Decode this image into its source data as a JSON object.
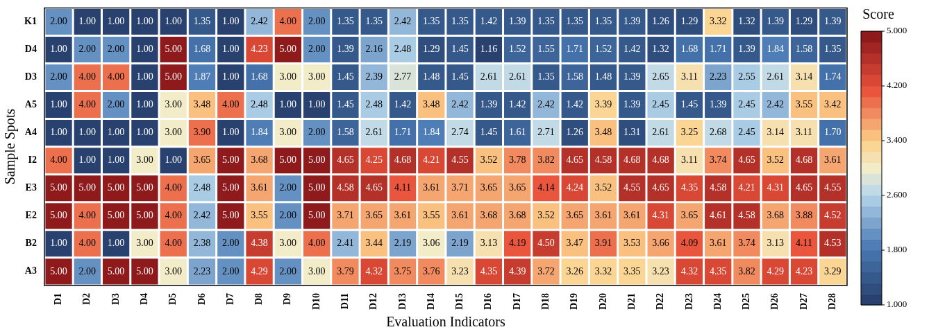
{
  "chart_data": {
    "type": "heatmap",
    "xlabel": "Evaluation Indicators",
    "ylabel": "Sample Spots",
    "clabel": "Score",
    "categories": [
      "D1",
      "D2",
      "D3",
      "D4",
      "D5",
      "D6",
      "D7",
      "D8",
      "D9",
      "D10",
      "D11",
      "D12",
      "D13",
      "D14",
      "D15",
      "D16",
      "D17",
      "D18",
      "D19",
      "D20",
      "D21",
      "D22",
      "D23",
      "D24",
      "D25",
      "D26",
      "D27",
      "D28"
    ],
    "y_categories": [
      "K1",
      "D4",
      "D3",
      "A5",
      "A4",
      "I2",
      "E3",
      "E2",
      "B2",
      "A3"
    ],
    "cells": [
      [
        2.0,
        1.0,
        1.0,
        1.0,
        1.0,
        1.35,
        1.0,
        2.42,
        4.0,
        2.0,
        1.35,
        1.35,
        2.42,
        1.35,
        1.35,
        1.42,
        1.39,
        1.35,
        1.35,
        1.35,
        1.39,
        1.26,
        1.29,
        3.32,
        1.32,
        1.39,
        1.29,
        1.39
      ],
      [
        1.0,
        2.0,
        2.0,
        1.0,
        5.0,
        1.68,
        1.0,
        4.23,
        5.0,
        2.0,
        1.39,
        2.16,
        2.48,
        1.29,
        1.45,
        1.16,
        1.52,
        1.55,
        1.71,
        1.52,
        1.42,
        1.32,
        1.68,
        1.71,
        1.39,
        1.84,
        1.58,
        1.35
      ],
      [
        2.0,
        4.0,
        4.0,
        1.0,
        5.0,
        1.87,
        1.0,
        1.68,
        3.0,
        3.0,
        1.45,
        2.39,
        2.77,
        1.48,
        1.45,
        2.61,
        2.61,
        1.35,
        1.58,
        1.48,
        1.39,
        2.65,
        3.11,
        2.23,
        2.55,
        2.61,
        3.14,
        1.74
      ],
      [
        1.0,
        4.0,
        2.0,
        1.0,
        3.0,
        3.48,
        4.0,
        2.48,
        1.0,
        1.0,
        1.45,
        2.48,
        1.42,
        3.48,
        2.42,
        1.39,
        1.42,
        2.42,
        1.42,
        3.39,
        1.39,
        2.45,
        1.45,
        1.39,
        2.45,
        2.42,
        3.55,
        3.42
      ],
      [
        1.0,
        1.0,
        1.0,
        1.0,
        3.0,
        3.9,
        1.0,
        1.84,
        3.0,
        2.0,
        1.58,
        2.61,
        1.71,
        1.84,
        2.74,
        1.45,
        1.61,
        2.71,
        1.26,
        3.48,
        1.31,
        2.61,
        3.25,
        2.68,
        2.45,
        3.14,
        3.11,
        1.7
      ],
      [
        4.0,
        1.0,
        1.0,
        3.0,
        1.0,
        3.65,
        5.0,
        3.68,
        5.0,
        5.0,
        4.65,
        4.25,
        4.68,
        4.21,
        4.55,
        3.52,
        3.78,
        3.82,
        4.65,
        4.58,
        4.68,
        4.68,
        3.11,
        3.74,
        4.65,
        3.52,
        4.68,
        3.61
      ],
      [
        5.0,
        5.0,
        5.0,
        5.0,
        4.0,
        2.48,
        5.0,
        3.61,
        2.0,
        5.0,
        4.58,
        4.65,
        4.11,
        3.61,
        3.71,
        3.65,
        3.65,
        4.14,
        4.24,
        3.52,
        4.55,
        4.65,
        4.35,
        4.58,
        4.21,
        4.31,
        4.65,
        4.55
      ],
      [
        5.0,
        4.0,
        5.0,
        5.0,
        4.0,
        2.42,
        5.0,
        3.55,
        2.0,
        5.0,
        3.71,
        3.65,
        3.61,
        3.55,
        3.61,
        3.68,
        3.68,
        3.52,
        3.65,
        3.61,
        3.61,
        4.31,
        3.65,
        4.61,
        4.58,
        3.68,
        3.88,
        4.52
      ],
      [
        1.0,
        4.0,
        1.0,
        3.0,
        4.0,
        2.38,
        2.0,
        4.38,
        3.0,
        4.0,
        2.41,
        3.44,
        2.19,
        3.06,
        2.19,
        3.13,
        4.19,
        4.5,
        3.47,
        3.91,
        3.53,
        3.66,
        4.09,
        3.61,
        3.74,
        3.13,
        4.11,
        4.53
      ],
      [
        5.0,
        2.0,
        5.0,
        5.0,
        3.0,
        2.23,
        2.0,
        4.29,
        2.0,
        3.0,
        3.79,
        4.32,
        3.75,
        3.76,
        3.23,
        4.35,
        4.39,
        3.72,
        3.26,
        3.32,
        3.35,
        3.23,
        4.32,
        4.35,
        3.82,
        4.29,
        4.23,
        3.29
      ]
    ],
    "cell_labels": [
      [
        "2.00",
        "1.00",
        "1.00",
        "1.00",
        "1.00",
        "1.35",
        "1.00",
        "2.42",
        "4.00",
        "2.00",
        "1.35",
        "1.35",
        "2.42",
        "1.35",
        "1.35",
        "1.42",
        "1.39",
        "1.35",
        "1.35",
        "1.35",
        "1.39",
        "1.26",
        "1.29",
        "3.32",
        "1.32",
        "1.39",
        "1.29",
        "1.39"
      ],
      [
        "1.00",
        "2.00",
        "2.00",
        "1.00",
        "5.00",
        "1.68",
        "1.00",
        "4.23",
        "5.00",
        "2.00",
        "1.39",
        "2.16",
        "2.48",
        "1.29",
        "1.45",
        "1.16",
        "1.52",
        "1.55",
        "1.71",
        "1.52",
        "1.42",
        "1.32",
        "1.68",
        "1.71",
        "1.39",
        "1.84",
        "1.58",
        "1.35"
      ],
      [
        "2.00",
        "4.00",
        "4.00",
        "1.00",
        "5.00",
        "1.87",
        "1.00",
        "1.68",
        "3.00",
        "3.00",
        "1.45",
        "2.39",
        "2.77",
        "1.48",
        "1.45",
        "2.61",
        "2.61",
        "1.35",
        "1.58",
        "1.48",
        "1.39",
        "2.65",
        "3.11",
        "2.23",
        "2.55",
        "2.61",
        "3.14",
        "1.74"
      ],
      [
        "1.00",
        "4.00",
        "2.00",
        "1.00",
        "3.00",
        "3.48",
        "4.00",
        "2.48",
        "1.00",
        "1.00",
        "1.45",
        "2.48",
        "1.42",
        "3.48",
        "2.42",
        "1.39",
        "1.42",
        "2.42",
        "1.42",
        "3.39",
        "1.39",
        "2.45",
        "1.45",
        "1.39",
        "2.45",
        "2.42",
        "3.55",
        "3.42"
      ],
      [
        "1.00",
        "1.00",
        "1.00",
        "1.00",
        "3.00",
        "3.90",
        "1.00",
        "1.84",
        "3.00",
        "2.00",
        "1.58",
        "2.61",
        "1.71",
        "1.84",
        "2.74",
        "1.45",
        "1.61",
        "2.71",
        "1.26",
        "3.48",
        "1.31",
        "2.61",
        "3.25",
        "2.68",
        "2.45",
        "3.14",
        "3.11",
        "1.70"
      ],
      [
        "4.00",
        "1.00",
        "1.00",
        "3.00",
        "1.00",
        "3.65",
        "5.00",
        "3.68",
        "5.00",
        "5.00",
        "4.65",
        "4.25",
        "4.68",
        "4.21",
        "4.55",
        "3.52",
        "3.78",
        "3.82",
        "4.65",
        "4.58",
        "4.68",
        "4.68",
        "3.11",
        "3.74",
        "4.65",
        "3.52",
        "4.68",
        "3.61"
      ],
      [
        "5.00",
        "5.00",
        "5.00",
        "5.00",
        "4.00",
        "2.48",
        "5.00",
        "3.61",
        "2.00",
        "5.00",
        "4.58",
        "4.65",
        "4.11",
        "3.61",
        "3.71",
        "3.65",
        "3.65",
        "4.14",
        "4.24",
        "3.52",
        "4.55",
        "4.65",
        "4.35",
        "4.58",
        "4.21",
        "4.31",
        "4.65",
        "4.55"
      ],
      [
        "5.00",
        "4.00",
        "5.00",
        "5.00",
        "4.00",
        "2.42",
        "5.00",
        "3.55",
        "2.00",
        "5.00",
        "3.71",
        "3.65",
        "3.61",
        "3.55",
        "3.61",
        "3.68",
        "3.68",
        "3.52",
        "3.65",
        "3.61",
        "3.61",
        "4.31",
        "3.65",
        "4.61",
        "4.58",
        "3.68",
        "3.88",
        "4.52"
      ],
      [
        "1.00",
        "4.00",
        "1.00",
        "3.00",
        "4.00",
        "2.38",
        "2.00",
        "4.38",
        "3.00",
        "4.00",
        "2.41",
        "3.44",
        "2.19",
        "3.06",
        "2.19",
        "3.13",
        "4.19",
        "4.50",
        "3.47",
        "3.91",
        "3.53",
        "3.66",
        "4.09",
        "3.61",
        "3.74",
        "3.13",
        "4.11",
        "4.53"
      ],
      [
        "5.00",
        "2.00",
        "5.00",
        "5.00",
        "3.00",
        "2.23",
        "2.00",
        "4.29",
        "2.00",
        "3.00",
        "3.79",
        "4.32",
        "3.75",
        "3.76",
        "3.23",
        "4.35",
        "4.39",
        "3.72",
        "3.26",
        "3.32",
        "3.35",
        "3.23",
        "4.32",
        "4.35",
        "3.82",
        "4.29",
        "4.23",
        "3.29"
      ]
    ],
    "clim": [
      1,
      5
    ],
    "cticks": [
      {
        "value": 1,
        "label": "1.000"
      },
      {
        "value": 1.8,
        "label": "1.800"
      },
      {
        "value": 2.6,
        "label": "2.600"
      },
      {
        "value": 3.4,
        "label": "3.400"
      },
      {
        "value": 4.2,
        "label": "4.200"
      },
      {
        "value": 5,
        "label": "5.000"
      }
    ]
  }
}
